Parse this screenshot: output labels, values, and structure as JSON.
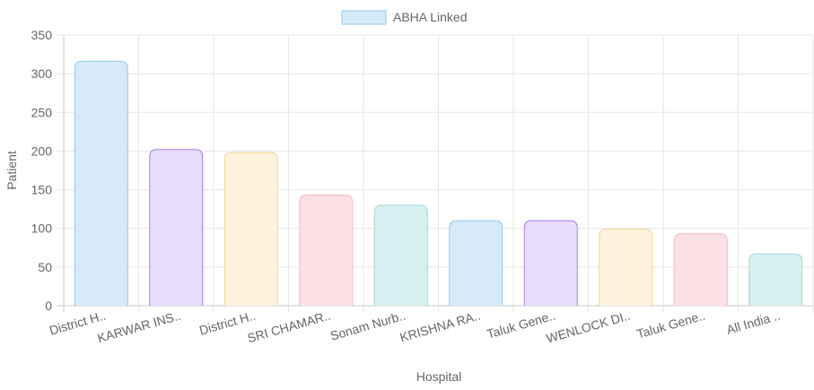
{
  "chart_data": {
    "type": "bar",
    "legend": {
      "label": "ABHA Linked",
      "position": "top",
      "fill": "#d6eaf8",
      "stroke": "#8ec9ee"
    },
    "xlabel": "Hospital",
    "ylabel": "Patient",
    "ylim": [
      0,
      350
    ],
    "yticks": [
      0,
      50,
      100,
      150,
      200,
      250,
      300,
      350
    ],
    "grid": true,
    "categories": [
      "District H..",
      "KARWAR INS..",
      "District H..",
      "SRI CHAMAR..",
      "Sonam Nurb..",
      "KRISHNA RA..",
      "Taluk Gene..",
      "WENLOCK DI..",
      "Taluk Gene..",
      "All India .."
    ],
    "values": [
      316,
      202,
      198,
      143,
      130,
      110,
      110,
      99,
      93,
      67
    ],
    "bar_colors": [
      {
        "fill": "#d6eaf8",
        "stroke": "#8ec9ee"
      },
      {
        "fill": "#e8dcfd",
        "stroke": "#a77ee6"
      },
      {
        "fill": "#fdf3dc",
        "stroke": "#f3d38a"
      },
      {
        "fill": "#fde0e6",
        "stroke": "#f7b3c2"
      },
      {
        "fill": "#d7f0f0",
        "stroke": "#9fd8d8"
      },
      {
        "fill": "#d6eaf8",
        "stroke": "#8ec9ee"
      },
      {
        "fill": "#e8dcfd",
        "stroke": "#a77ee6"
      },
      {
        "fill": "#fdf3dc",
        "stroke": "#f3d38a"
      },
      {
        "fill": "#fde0e6",
        "stroke": "#f7b3c2"
      },
      {
        "fill": "#d7f0f0",
        "stroke": "#9fd8d8"
      }
    ]
  }
}
